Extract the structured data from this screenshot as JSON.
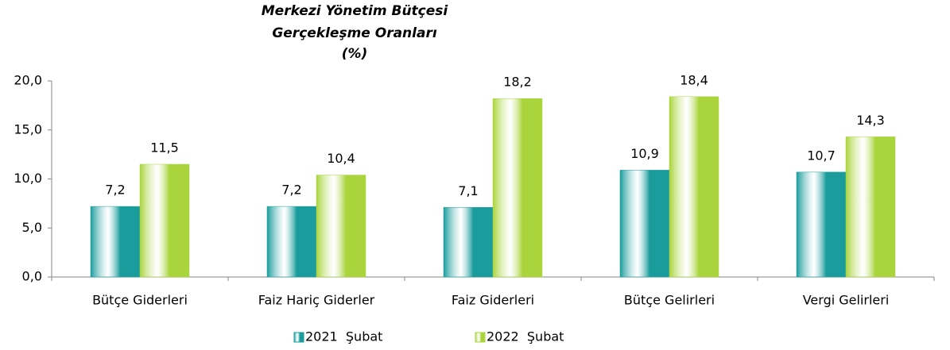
{
  "chart_data": {
    "type": "bar",
    "title": [
      "Merkezi Yönetim Bütçesi",
      "Gerçekleşme Oranları",
      "(%)"
    ],
    "categories": [
      "Bütçe Giderleri",
      "Faiz Hariç Giderler",
      "Faiz Giderleri",
      "Bütçe Gelirleri",
      "Vergi Gelirleri"
    ],
    "series": [
      {
        "name": "2021  Şubat",
        "color": "#1a9c9c",
        "values": [
          7.2,
          7.2,
          7.1,
          10.9,
          10.7
        ],
        "value_labels": [
          "7,2",
          "7,2",
          "7,1",
          "10,9",
          "10,7"
        ]
      },
      {
        "name": "2022  Şubat",
        "color": "#a9d43c",
        "values": [
          11.5,
          10.4,
          18.2,
          18.4,
          14.3
        ],
        "value_labels": [
          "11,5",
          "10,4",
          "18,2",
          "18,4",
          "14,3"
        ]
      }
    ],
    "ylim": [
      0,
      20
    ],
    "yticks": [
      {
        "value": 0,
        "label": "0,0"
      },
      {
        "value": 5,
        "label": "5,0"
      },
      {
        "value": 10,
        "label": "10,0"
      },
      {
        "value": 15,
        "label": "15,0"
      },
      {
        "value": 20,
        "label": "20,0"
      }
    ],
    "grid": false,
    "legend": "bottom"
  }
}
